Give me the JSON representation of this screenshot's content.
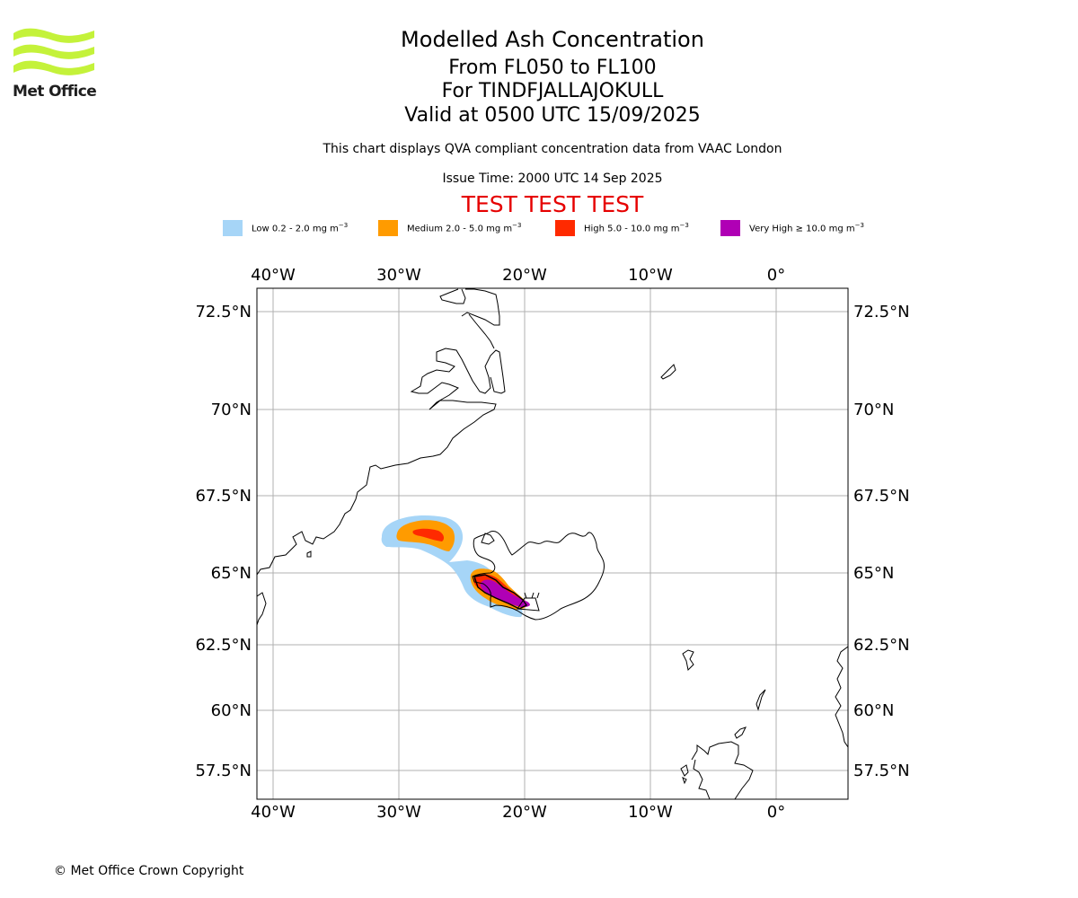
{
  "branding": {
    "logo_text": "Met Office"
  },
  "header": {
    "title": "Modelled Ash Concentration",
    "levels": "From FL050 to FL100",
    "volcano": "For TINDFJALLAJOKULL",
    "valid": "Valid at 0500 UTC 15/09/2025",
    "note": "This chart displays QVA compliant concentration data from VAAC London",
    "issue": "Issue Time: 2000 UTC 14 Sep 2025",
    "test": "TEST TEST TEST"
  },
  "legend": [
    {
      "label": "Low 0.2 - 2.0 mg m",
      "unit_exp": "−3",
      "color": "#a6d5f7"
    },
    {
      "label": "Medium 2.0 - 5.0 mg m",
      "unit_exp": "−3",
      "color": "#ff9b00"
    },
    {
      "label": "High 5.0 - 10.0 mg m",
      "unit_exp": "−3",
      "color": "#ff2a00"
    },
    {
      "label": "Very High  ≥  10.0 mg m",
      "unit_exp": "−3",
      "color": "#b000b5"
    }
  ],
  "map": {
    "lon_ticks": [
      "40°W",
      "30°W",
      "20°W",
      "10°W",
      "0°"
    ],
    "lat_ticks": [
      "72.5°N",
      "70°N",
      "67.5°N",
      "65°N",
      "62.5°N",
      "60°N",
      "57.5°N"
    ],
    "grid": true,
    "coastline_color": "#000000",
    "grid_color": "#b0b0b0"
  },
  "footer": {
    "copyright": "© Met Office Crown Copyright"
  }
}
